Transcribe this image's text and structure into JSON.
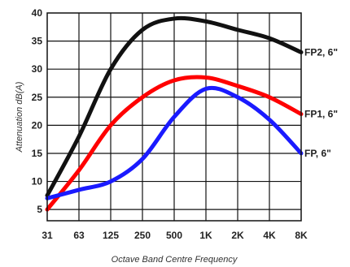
{
  "chart_data": {
    "type": "line",
    "title": "",
    "xlabel": "Octave Band Centre Frequency",
    "ylabel": "Attenuation dB(A)",
    "categories": [
      "31",
      "63",
      "125",
      "250",
      "500",
      "1K",
      "2K",
      "4K",
      "8K"
    ],
    "y_ticks": [
      5,
      10,
      15,
      20,
      25,
      30,
      35,
      40
    ],
    "ylim": [
      3,
      40
    ],
    "grid": true,
    "legend_placement": "right, at line ends",
    "series": [
      {
        "name": "FP2, 6\"",
        "color": "#111111",
        "values": [
          7.5,
          18,
          30,
          37,
          39,
          38.5,
          37,
          35.5,
          33
        ]
      },
      {
        "name": "FP1, 6\"",
        "color": "#ff0000",
        "values": [
          5,
          12,
          20,
          25,
          28,
          28.5,
          27,
          25,
          22
        ]
      },
      {
        "name": "FP, 6\"",
        "color": "#1a1aff",
        "values": [
          7,
          8.5,
          10,
          14,
          21.5,
          26.5,
          25,
          21,
          15
        ]
      }
    ]
  }
}
